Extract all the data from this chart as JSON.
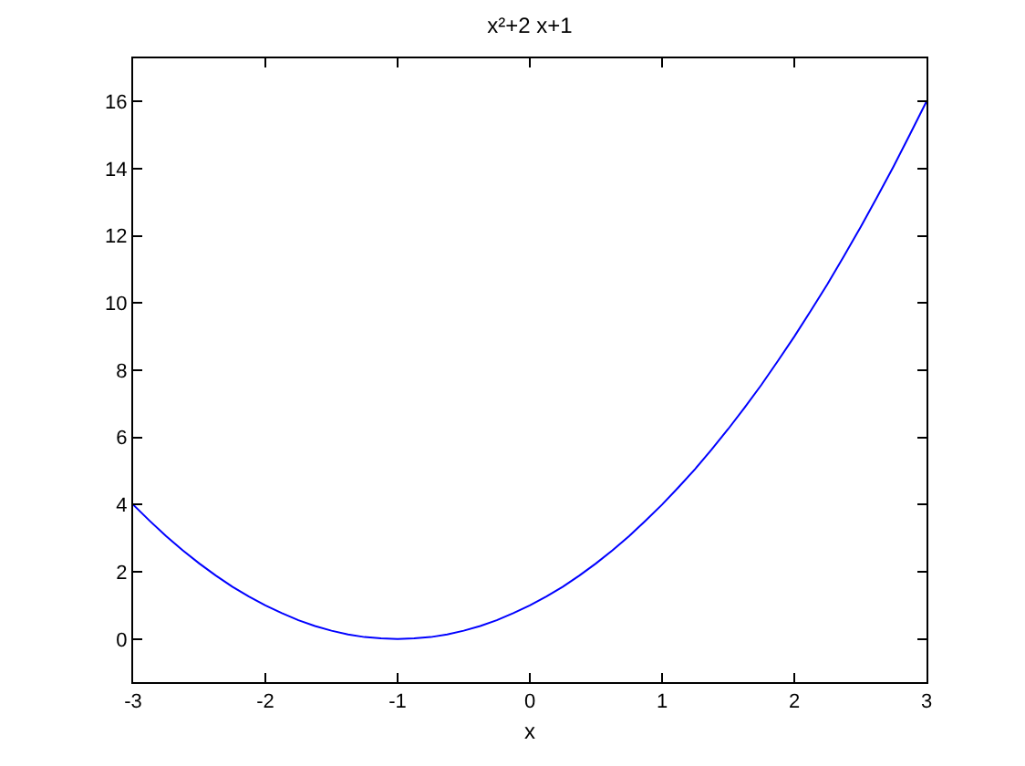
{
  "chart_data": {
    "type": "line",
    "title": "x²+2 x+1",
    "xlabel": "x",
    "x": [
      -3,
      -2.875,
      -2.75,
      -2.625,
      -2.5,
      -2.375,
      -2.25,
      -2.125,
      -2,
      -1.875,
      -1.75,
      -1.625,
      -1.5,
      -1.375,
      -1.25,
      -1.125,
      -1,
      -0.875,
      -0.75,
      -0.625,
      -0.5,
      -0.375,
      -0.25,
      -0.125,
      0,
      0.125,
      0.25,
      0.375,
      0.5,
      0.625,
      0.75,
      0.875,
      1,
      1.125,
      1.25,
      1.375,
      1.5,
      1.625,
      1.75,
      1.875,
      2,
      2.125,
      2.25,
      2.375,
      2.5,
      2.625,
      2.75,
      2.875,
      3
    ],
    "values": [
      4,
      3.52,
      3.06,
      2.64,
      2.25,
      1.89,
      1.56,
      1.27,
      1,
      0.77,
      0.56,
      0.39,
      0.25,
      0.14,
      0.06,
      0.02,
      0,
      0.02,
      0.06,
      0.14,
      0.25,
      0.39,
      0.56,
      0.77,
      1,
      1.27,
      1.56,
      1.89,
      2.25,
      2.64,
      3.06,
      3.52,
      4,
      4.52,
      5.06,
      5.64,
      6.25,
      6.89,
      7.56,
      8.27,
      9,
      9.77,
      10.56,
      11.39,
      12.25,
      13.14,
      14.06,
      15.02,
      16
    ],
    "color": "#0000ff",
    "xlim": [
      -3,
      3
    ],
    "ylim": [
      -1.28,
      17.28
    ],
    "xticks": [
      -3,
      -2,
      -1,
      0,
      1,
      2,
      3
    ],
    "yticks": [
      0,
      2,
      4,
      6,
      8,
      10,
      12,
      14,
      16
    ]
  }
}
